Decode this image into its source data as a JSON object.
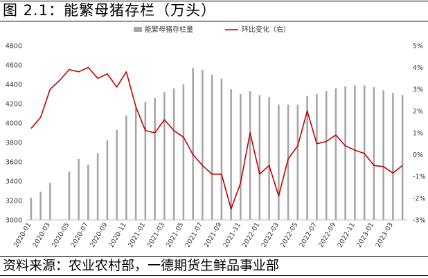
{
  "title": "图 2.1：能繁母猪存栏（万头）",
  "source": "资料来源：农业农村部，一德期货生鲜品事业部",
  "colors": {
    "bar": "#a6a6a6",
    "line": "#c00000"
  },
  "chart_data": {
    "type": "bar+line",
    "categories": [
      "2020-01",
      "2020-02",
      "2020-03",
      "2020-04",
      "2020-05",
      "2020-06",
      "2020-07",
      "2020-08",
      "2020-09",
      "2020-10",
      "2020-11",
      "2020-12",
      "2021-01",
      "2021-02",
      "2021-03",
      "2021-04",
      "2021-05",
      "2021-06",
      "2021-07",
      "2021-08",
      "2021-09",
      "2021-10",
      "2021-11",
      "2021-12",
      "2022-01",
      "2022-02",
      "2022-03",
      "2022-04",
      "2022-05",
      "2022-06",
      "2022-07",
      "2022-08",
      "2022-09",
      "2022-10",
      "2022-11",
      "2022-12",
      "2023-01",
      "2023-02",
      "2023-03",
      "2023-04"
    ],
    "x_tick_labels": [
      "2020-01",
      "2020-03",
      "2020-05",
      "2020-07",
      "2020-09",
      "2020-11",
      "2021-01",
      "2021-03",
      "2021-05",
      "2021-07",
      "2021-09",
      "2021-11",
      "2022-01",
      "2022-03",
      "2022-05",
      "2022-07",
      "2022-09",
      "2022-11",
      "2023-01",
      "2023-03"
    ],
    "series": [
      {
        "name": "能繁母猪存栏量",
        "type": "bar",
        "axis": "left",
        "values": [
          3230,
          3290,
          3380,
          null,
          3500,
          3630,
          3570,
          3690,
          3820,
          3930,
          4080,
          4160,
          4220,
          4260,
          4320,
          4360,
          4400,
          4570,
          4550,
          4500,
          4460,
          4350,
          4300,
          4330,
          4290,
          4270,
          4190,
          4190,
          4190,
          4280,
          4300,
          4330,
          4360,
          4380,
          4390,
          4390,
          4370,
          4340,
          4310,
          4290
        ]
      },
      {
        "name": "环比变化（右）",
        "type": "line",
        "axis": "right",
        "values": [
          1.2,
          1.7,
          3.0,
          3.4,
          3.9,
          3.8,
          4.0,
          3.5,
          3.7,
          3.1,
          3.8,
          2.2,
          1.1,
          1.0,
          1.6,
          1.1,
          0.8,
          0.0,
          -0.5,
          -0.9,
          -0.9,
          -2.5,
          -1.3,
          1.0,
          -0.9,
          -0.5,
          -1.9,
          -0.2,
          0.4,
          2.0,
          0.5,
          0.6,
          0.9,
          0.4,
          0.2,
          0.05,
          -0.5,
          -0.55,
          -0.85,
          -0.5
        ]
      }
    ],
    "y_left": {
      "min": 3000,
      "max": 4800,
      "step": 200,
      "ticks": [
        "3000",
        "3200",
        "3400",
        "3600",
        "3800",
        "4000",
        "4200",
        "4400",
        "4600",
        "4800"
      ]
    },
    "y_right": {
      "min": -3,
      "max": 5,
      "step": 1,
      "ticks": [
        "-3%",
        "-2%",
        "-1%",
        "0%",
        "1%",
        "2%",
        "3%",
        "4%",
        "5%"
      ]
    },
    "legend_position": "top-center",
    "grid": false
  }
}
